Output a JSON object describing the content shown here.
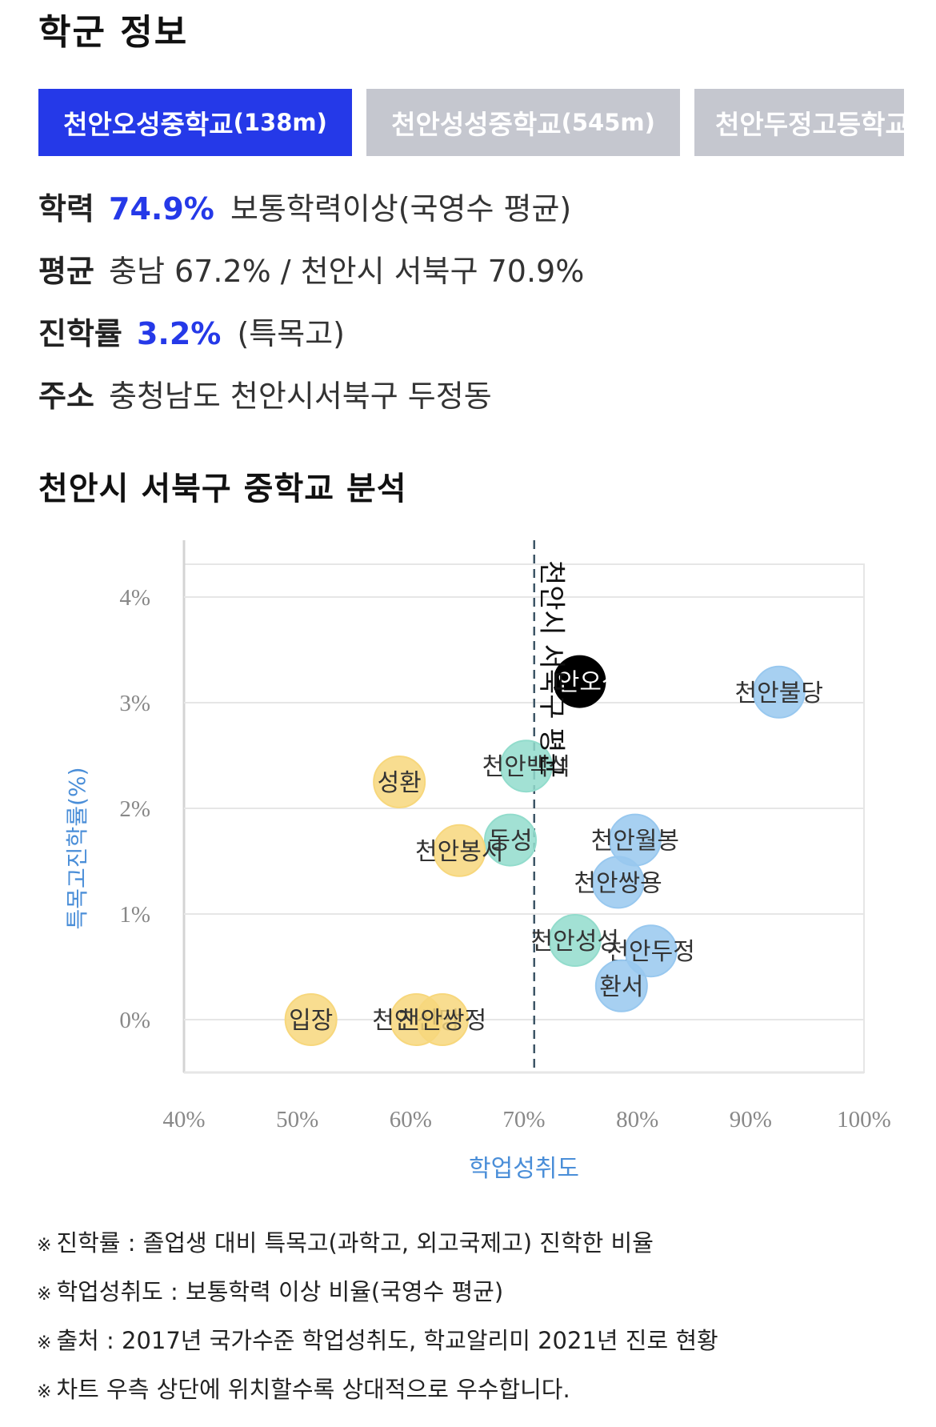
{
  "section_title": "학군 정보",
  "tabs": [
    {
      "name": "천안오성중학교",
      "distance": "(138m)",
      "active": true
    },
    {
      "name": "천안성성중학교",
      "distance": "(545m)",
      "active": false
    },
    {
      "name": "천안두정고등학교",
      "distance": "",
      "active": false
    }
  ],
  "info": {
    "achievement": {
      "label": "학력",
      "value": "74.9%",
      "desc": "보통학력이상(국영수 평균)"
    },
    "average": {
      "label": "평균",
      "text": "충남 67.2% / 천안시 서북구 70.9%"
    },
    "advancement": {
      "label": "진학률",
      "value": "3.2%",
      "desc": "(특목고)"
    },
    "address": {
      "label": "주소",
      "text": "충청남도 천안시서북구 두정동"
    }
  },
  "chart_title": "천안시 서북구 중학교 분석",
  "chart_data": {
    "type": "scatter",
    "xlabel": "학업성취도",
    "ylabel": "특목고진학률(%)",
    "xlim": [
      40,
      100
    ],
    "ylim": [
      -0.5,
      4.5
    ],
    "x_ticks": [
      "40%",
      "50%",
      "60%",
      "70%",
      "80%",
      "90%",
      "100%"
    ],
    "y_ticks": [
      "0%",
      "1%",
      "2%",
      "3%",
      "4%"
    ],
    "reference_line": {
      "x": 70.9,
      "label": "천안시 서북구 평균"
    },
    "colors": {
      "yellow": "#f7d77c",
      "teal": "#92dccc",
      "blue": "#98c8ef",
      "highlight": "#000000"
    },
    "points": [
      {
        "label": "천안불당",
        "x": 92.5,
        "y": 3.1,
        "color": "blue"
      },
      {
        "label": "천안월봉",
        "x": 79.8,
        "y": 1.7,
        "color": "blue"
      },
      {
        "label": "천안쌍용",
        "x": 78.3,
        "y": 1.3,
        "color": "blue"
      },
      {
        "label": "천안두정",
        "x": 81.2,
        "y": 0.65,
        "color": "blue"
      },
      {
        "label": "환서",
        "x": 78.6,
        "y": 0.32,
        "color": "blue"
      },
      {
        "label": "천안백석",
        "x": 70.2,
        "y": 2.4,
        "color": "teal"
      },
      {
        "label": "동성",
        "x": 68.8,
        "y": 1.7,
        "color": "teal"
      },
      {
        "label": "천안성성",
        "x": 74.5,
        "y": 0.75,
        "color": "teal"
      },
      {
        "label": "성환",
        "x": 59.0,
        "y": 2.25,
        "color": "yellow"
      },
      {
        "label": "천안봉서",
        "x": 64.3,
        "y": 1.6,
        "color": "yellow"
      },
      {
        "label": "입장",
        "x": 51.2,
        "y": 0.0,
        "color": "yellow"
      },
      {
        "label": "천안신당",
        "x": 60.5,
        "y": 0.0,
        "color": "yellow"
      },
      {
        "label": "천안쌍정",
        "x": 62.8,
        "y": 0.0,
        "color": "yellow"
      },
      {
        "label": "천안오성",
        "x": 74.9,
        "y": 3.2,
        "color": "highlight"
      }
    ]
  },
  "notes": [
    "진학률 : 졸업생 대비 특목고(과학고, 외고국제고) 진학한 비율",
    "학업성취도 : 보통학력 이상 비율(국영수 평균)",
    "출처 : 2017년 국가수준 학업성취도, 학교알리미 2021년 진로 현황",
    "차트 우측 상단에 위치할수록 상대적으로 우수합니다."
  ],
  "note_mark": "※"
}
